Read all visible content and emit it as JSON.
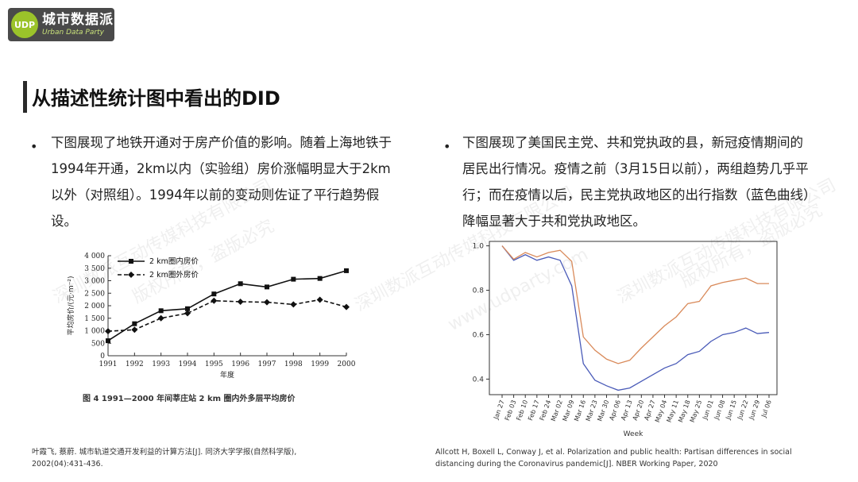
{
  "logo": {
    "mark": "UDP",
    "name_cn": "城市数据派",
    "name_en": "Urban Data Party"
  },
  "page_title": "从描述性统计图中看出的DID",
  "left_bullet": "下图展现了地铁开通对于房产价值的影响。随着上海地铁于1994年开通，2km以内（实验组）房价涨幅明显大于2km以外（对照组）。1994年以前的变动则佐证了平行趋势假设。",
  "right_bullet": "下图展现了美国民主党、共和党执政的县，新冠疫情期间的居民出行情况。疫情之前（3月15日以前），两组趋势几乎平行；而在疫情以后，民主党执政地区的出行指数（蓝色曲线）降幅显著大于共和党执政地区。",
  "left_citation": "叶霞飞, 蔡蔚. 城市轨道交通开发利益的计算方法[J]. 同济大学学报(自然科学版), 2002(04):431-436.",
  "right_citation": "Allcott H, Boxell L, Conway J, et al. Polarization and public health: Partisan differences in social distancing during the Coronavirus pandemic[J]. NBER Working Paper, 2020",
  "watermark": {
    "line1": "深圳数派互动传媒科技有限公司",
    "line2": "版权所有，盗版必究",
    "line3": "www.udparty.com"
  },
  "chart_left": {
    "caption": "图 4  1991—2000 年间莘庄站 2 km 圈内外多层平均房价",
    "chart_data": {
      "type": "line",
      "x": [
        "1991",
        "1992",
        "1993",
        "1994",
        "1995",
        "1996",
        "1997",
        "1998",
        "1999",
        "2000"
      ],
      "series": [
        {
          "name": "2 km圈内房价",
          "values": [
            600,
            1280,
            1800,
            1880,
            2470,
            2880,
            2750,
            3060,
            3090,
            3400
          ]
        },
        {
          "name": "2 km圈外房价",
          "values": [
            980,
            1040,
            1500,
            1700,
            2200,
            2160,
            2140,
            2050,
            2240,
            1950
          ]
        }
      ],
      "xlabel": "年度",
      "ylabel": "平均房价/(元·m⁻²)",
      "yticks": [
        "0",
        "500",
        "1 000",
        "1 500",
        "2 000",
        "2 500",
        "3 000",
        "3 500",
        "4 000"
      ],
      "ylim": [
        0,
        4000
      ],
      "legend": "top-left"
    }
  },
  "chart_right": {
    "chart_data": {
      "type": "line",
      "x": [
        "Jan 27",
        "Feb 03",
        "Feb 10",
        "Feb 17",
        "Feb 24",
        "Mar 02",
        "Mar 09",
        "Mar 16",
        "Mar 23",
        "Mar 30",
        "Apr 06",
        "Apr 13",
        "Apr 20",
        "Apr 27",
        "May 04",
        "May 11",
        "May 18",
        "May 25",
        "Jun 01",
        "Jun 08",
        "Jun 15",
        "Jun 22",
        "Jun 29",
        "Jul 06"
      ],
      "series": [
        {
          "color": "#4a5bb8",
          "values": [
            1.0,
            0.935,
            0.96,
            0.935,
            0.95,
            0.935,
            0.82,
            0.47,
            0.395,
            0.37,
            0.35,
            0.36,
            0.39,
            0.42,
            0.45,
            0.47,
            0.51,
            0.525,
            0.57,
            0.6,
            0.61,
            0.63,
            0.605,
            0.61
          ]
        },
        {
          "color": "#d98a5a",
          "values": [
            1.0,
            0.94,
            0.97,
            0.95,
            0.97,
            0.98,
            0.93,
            0.59,
            0.53,
            0.49,
            0.47,
            0.485,
            0.54,
            0.59,
            0.64,
            0.68,
            0.74,
            0.75,
            0.82,
            0.835,
            0.845,
            0.855,
            0.83,
            0.83
          ]
        }
      ],
      "xlabel": "Week",
      "yticks": [
        "0.4",
        "0.6",
        "0.8",
        "1.0"
      ],
      "ylim": [
        0.33,
        1.02
      ]
    }
  }
}
